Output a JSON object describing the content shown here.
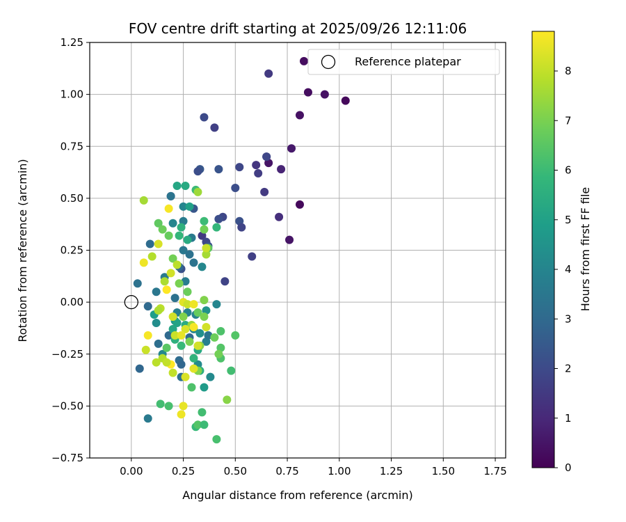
{
  "chart_data": {
    "type": "scatter",
    "title": "FOV centre drift starting at 2025/09/26 12:11:06",
    "xlabel": "Angular distance from reference (arcmin)",
    "ylabel": "Rotation from reference (arcmin)",
    "xlim": [
      -0.2,
      1.8
    ],
    "ylim": [
      -0.75,
      1.25
    ],
    "xticks": [
      0.0,
      0.25,
      0.5,
      0.75,
      1.0,
      1.25,
      1.5,
      1.75
    ],
    "xtick_labels": [
      "0.00",
      "0.25",
      "0.50",
      "0.75",
      "1.00",
      "1.25",
      "1.50",
      "1.75"
    ],
    "yticks": [
      -0.75,
      -0.5,
      -0.25,
      0.0,
      0.25,
      0.5,
      0.75,
      1.0,
      1.25
    ],
    "ytick_labels": [
      "−0.75",
      "−0.50",
      "−0.25",
      "0.00",
      "0.25",
      "0.50",
      "0.75",
      "1.00",
      "1.25"
    ],
    "grid": true,
    "legend": {
      "position": "top-right",
      "label": "Reference platepar"
    },
    "reference_point": {
      "x": 0.0,
      "y": 0.0
    },
    "colorbar": {
      "label": "Hours from first FF file",
      "range": [
        0,
        8.8
      ],
      "ticks": [
        0,
        1,
        2,
        3,
        4,
        5,
        6,
        7,
        8
      ],
      "tick_labels": [
        "0",
        "1",
        "2",
        "3",
        "4",
        "5",
        "6",
        "7",
        "8"
      ],
      "colormap": [
        "#440154",
        "#482878",
        "#3e4989",
        "#31688e",
        "#26828e",
        "#1f9e89",
        "#35b779",
        "#6ece58",
        "#b5de2b",
        "#fde725"
      ]
    },
    "points": [
      {
        "x": 0.83,
        "y": 1.16,
        "h": 0.3
      },
      {
        "x": 0.85,
        "y": 1.01,
        "h": 0.3
      },
      {
        "x": 0.93,
        "y": 1.0,
        "h": 0.4
      },
      {
        "x": 1.03,
        "y": 0.97,
        "h": 0.2
      },
      {
        "x": 0.81,
        "y": 0.9,
        "h": 0.4
      },
      {
        "x": 0.66,
        "y": 1.1,
        "h": 1.5
      },
      {
        "x": 0.77,
        "y": 0.74,
        "h": 0.6
      },
      {
        "x": 0.72,
        "y": 0.64,
        "h": 0.9
      },
      {
        "x": 0.66,
        "y": 0.67,
        "h": 0.5
      },
      {
        "x": 0.65,
        "y": 0.7,
        "h": 1.8
      },
      {
        "x": 0.65,
        "y": 0.7,
        "h": 1.9
      },
      {
        "x": 0.6,
        "y": 0.66,
        "h": 1.4
      },
      {
        "x": 0.61,
        "y": 0.62,
        "h": 1.6
      },
      {
        "x": 0.64,
        "y": 0.53,
        "h": 1.5
      },
      {
        "x": 0.52,
        "y": 0.65,
        "h": 1.9
      },
      {
        "x": 0.5,
        "y": 0.55,
        "h": 2.1
      },
      {
        "x": 0.71,
        "y": 0.41,
        "h": 1.2
      },
      {
        "x": 0.81,
        "y": 0.47,
        "h": 0.2
      },
      {
        "x": 0.76,
        "y": 0.3,
        "h": 0.5
      },
      {
        "x": 0.58,
        "y": 0.22,
        "h": 1.7
      },
      {
        "x": 0.52,
        "y": 0.39,
        "h": 2.2
      },
      {
        "x": 0.53,
        "y": 0.36,
        "h": 1.8
      },
      {
        "x": 0.35,
        "y": 0.89,
        "h": 2.0
      },
      {
        "x": 0.4,
        "y": 0.84,
        "h": 1.7
      },
      {
        "x": 0.42,
        "y": 0.64,
        "h": 2.3
      },
      {
        "x": 0.33,
        "y": 0.64,
        "h": 2.4
      },
      {
        "x": 0.32,
        "y": 0.63,
        "h": 2.1
      },
      {
        "x": 0.44,
        "y": 0.41,
        "h": 1.9
      },
      {
        "x": 0.42,
        "y": 0.4,
        "h": 2.1
      },
      {
        "x": 0.3,
        "y": 0.45,
        "h": 2.4
      },
      {
        "x": 0.34,
        "y": 0.32,
        "h": 1.5
      },
      {
        "x": 0.36,
        "y": 0.29,
        "h": 1.9
      },
      {
        "x": 0.37,
        "y": 0.27,
        "h": 2.2
      },
      {
        "x": 0.45,
        "y": 0.1,
        "h": 1.8
      },
      {
        "x": 0.19,
        "y": 0.51,
        "h": 2.0
      },
      {
        "x": 0.24,
        "y": 0.16,
        "h": 2.2
      },
      {
        "x": 0.03,
        "y": 0.09,
        "h": 3.3
      },
      {
        "x": 0.04,
        "y": -0.32,
        "h": 2.9
      },
      {
        "x": 0.08,
        "y": -0.56,
        "h": 3.6
      },
      {
        "x": 0.08,
        "y": -0.02,
        "h": 3.0
      },
      {
        "x": 0.09,
        "y": 0.28,
        "h": 3.1
      },
      {
        "x": 0.12,
        "y": 0.05,
        "h": 3.5
      },
      {
        "x": 0.12,
        "y": -0.1,
        "h": 4.3
      },
      {
        "x": 0.13,
        "y": -0.2,
        "h": 3.2
      },
      {
        "x": 0.15,
        "y": -0.25,
        "h": 4.1
      },
      {
        "x": 0.16,
        "y": 0.12,
        "h": 3.6
      },
      {
        "x": 0.18,
        "y": -0.16,
        "h": 3.0
      },
      {
        "x": 0.19,
        "y": 0.51,
        "h": 3.4
      },
      {
        "x": 0.2,
        "y": 0.38,
        "h": 4.0
      },
      {
        "x": 0.21,
        "y": 0.02,
        "h": 3.3
      },
      {
        "x": 0.22,
        "y": -0.05,
        "h": 3.8
      },
      {
        "x": 0.23,
        "y": 0.17,
        "h": 3.0
      },
      {
        "x": 0.23,
        "y": -0.28,
        "h": 3.1
      },
      {
        "x": 0.24,
        "y": -0.36,
        "h": 3.2
      },
      {
        "x": 0.24,
        "y": -0.3,
        "h": 2.9
      },
      {
        "x": 0.25,
        "y": 0.39,
        "h": 3.7
      },
      {
        "x": 0.25,
        "y": 0.46,
        "h": 4.0
      },
      {
        "x": 0.25,
        "y": 0.25,
        "h": 3.5
      },
      {
        "x": 0.26,
        "y": 0.1,
        "h": 3.7
      },
      {
        "x": 0.27,
        "y": -0.05,
        "h": 3.9
      },
      {
        "x": 0.28,
        "y": 0.23,
        "h": 3.3
      },
      {
        "x": 0.28,
        "y": -0.17,
        "h": 3.0
      },
      {
        "x": 0.29,
        "y": 0.31,
        "h": 3.6
      },
      {
        "x": 0.3,
        "y": 0.19,
        "h": 3.4
      },
      {
        "x": 0.3,
        "y": -0.13,
        "h": 4.0
      },
      {
        "x": 0.31,
        "y": -0.06,
        "h": 3.9
      },
      {
        "x": 0.32,
        "y": -0.3,
        "h": 4.2
      },
      {
        "x": 0.33,
        "y": -0.15,
        "h": 4.4
      },
      {
        "x": 0.34,
        "y": 0.17,
        "h": 4.1
      },
      {
        "x": 0.36,
        "y": -0.04,
        "h": 4.5
      },
      {
        "x": 0.36,
        "y": -0.19,
        "h": 3.8
      },
      {
        "x": 0.37,
        "y": -0.16,
        "h": 3.4
      },
      {
        "x": 0.38,
        "y": -0.36,
        "h": 4.2
      },
      {
        "x": 0.41,
        "y": -0.01,
        "h": 4.0
      },
      {
        "x": 0.35,
        "y": -0.41,
        "h": 4.8
      },
      {
        "x": 0.21,
        "y": -0.09,
        "h": 4.6
      },
      {
        "x": 0.11,
        "y": -0.06,
        "h": 4.9
      },
      {
        "x": 0.22,
        "y": 0.56,
        "h": 5.2
      },
      {
        "x": 0.26,
        "y": 0.56,
        "h": 5.3
      },
      {
        "x": 0.28,
        "y": 0.46,
        "h": 5.0
      },
      {
        "x": 0.24,
        "y": 0.36,
        "h": 5.6
      },
      {
        "x": 0.27,
        "y": 0.3,
        "h": 5.4
      },
      {
        "x": 0.23,
        "y": 0.32,
        "h": 5.8
      },
      {
        "x": 0.22,
        "y": -0.1,
        "h": 5.1
      },
      {
        "x": 0.2,
        "y": -0.13,
        "h": 5.2
      },
      {
        "x": 0.21,
        "y": -0.18,
        "h": 5.6
      },
      {
        "x": 0.24,
        "y": -0.21,
        "h": 5.9
      },
      {
        "x": 0.26,
        "y": -0.11,
        "h": 5.4
      },
      {
        "x": 0.3,
        "y": -0.27,
        "h": 5.7
      },
      {
        "x": 0.32,
        "y": -0.23,
        "h": 5.3
      },
      {
        "x": 0.33,
        "y": -0.33,
        "h": 5.5
      },
      {
        "x": 0.41,
        "y": 0.36,
        "h": 5.8
      },
      {
        "x": 0.35,
        "y": 0.39,
        "h": 6.0
      },
      {
        "x": 0.31,
        "y": 0.54,
        "h": 6.0
      },
      {
        "x": 0.14,
        "y": -0.49,
        "h": 6.1
      },
      {
        "x": 0.18,
        "y": -0.5,
        "h": 6.2
      },
      {
        "x": 0.29,
        "y": -0.41,
        "h": 6.3
      },
      {
        "x": 0.31,
        "y": -0.6,
        "h": 5.9
      },
      {
        "x": 0.32,
        "y": -0.59,
        "h": 6.4
      },
      {
        "x": 0.34,
        "y": -0.53,
        "h": 6.1
      },
      {
        "x": 0.35,
        "y": -0.59,
        "h": 6.0
      },
      {
        "x": 0.41,
        "y": -0.66,
        "h": 6.2
      },
      {
        "x": 0.43,
        "y": -0.27,
        "h": 6.3
      },
      {
        "x": 0.43,
        "y": -0.22,
        "h": 6.4
      },
      {
        "x": 0.43,
        "y": -0.14,
        "h": 6.3
      },
      {
        "x": 0.48,
        "y": -0.33,
        "h": 6.1
      },
      {
        "x": 0.5,
        "y": -0.16,
        "h": 6.4
      },
      {
        "x": 0.17,
        "y": -0.22,
        "h": 6.5
      },
      {
        "x": 0.13,
        "y": 0.38,
        "h": 6.6
      },
      {
        "x": 0.15,
        "y": 0.35,
        "h": 6.8
      },
      {
        "x": 0.18,
        "y": 0.32,
        "h": 6.7
      },
      {
        "x": 0.2,
        "y": 0.21,
        "h": 6.9
      },
      {
        "x": 0.23,
        "y": 0.09,
        "h": 7.0
      },
      {
        "x": 0.27,
        "y": 0.05,
        "h": 6.8
      },
      {
        "x": 0.32,
        "y": -0.05,
        "h": 6.7
      },
      {
        "x": 0.35,
        "y": -0.07,
        "h": 7.0
      },
      {
        "x": 0.35,
        "y": 0.35,
        "h": 6.9
      },
      {
        "x": 0.37,
        "y": 0.26,
        "h": 6.6
      },
      {
        "x": 0.35,
        "y": 0.01,
        "h": 7.1
      },
      {
        "x": 0.4,
        "y": -0.17,
        "h": 6.8
      },
      {
        "x": 0.42,
        "y": -0.25,
        "h": 6.9
      },
      {
        "x": 0.46,
        "y": -0.47,
        "h": 7.2
      },
      {
        "x": 0.32,
        "y": -0.33,
        "h": 7.1
      },
      {
        "x": 0.33,
        "y": -0.21,
        "h": 7.3
      },
      {
        "x": 0.28,
        "y": -0.19,
        "h": 7.0
      },
      {
        "x": 0.25,
        "y": -0.07,
        "h": 7.1
      },
      {
        "x": 0.29,
        "y": -0.11,
        "h": 7.4
      },
      {
        "x": 0.36,
        "y": 0.23,
        "h": 7.6
      },
      {
        "x": 0.32,
        "y": 0.53,
        "h": 7.5
      },
      {
        "x": 0.06,
        "y": 0.49,
        "h": 7.6
      },
      {
        "x": 0.16,
        "y": 0.1,
        "h": 7.7
      },
      {
        "x": 0.14,
        "y": -0.03,
        "h": 7.9
      },
      {
        "x": 0.15,
        "y": -0.27,
        "h": 7.8
      },
      {
        "x": 0.12,
        "y": -0.29,
        "h": 7.9
      },
      {
        "x": 0.2,
        "y": -0.34,
        "h": 8.0
      },
      {
        "x": 0.21,
        "y": -0.16,
        "h": 8.1
      },
      {
        "x": 0.19,
        "y": 0.14,
        "h": 8.2
      },
      {
        "x": 0.13,
        "y": 0.28,
        "h": 8.3
      },
      {
        "x": 0.1,
        "y": 0.22,
        "h": 7.8
      },
      {
        "x": 0.06,
        "y": 0.19,
        "h": 8.6
      },
      {
        "x": 0.18,
        "y": 0.45,
        "h": 8.7
      },
      {
        "x": 0.17,
        "y": 0.06,
        "h": 8.8
      },
      {
        "x": 0.2,
        "y": -0.07,
        "h": 8.2
      },
      {
        "x": 0.25,
        "y": 0.0,
        "h": 8.4
      },
      {
        "x": 0.27,
        "y": -0.01,
        "h": 8.1
      },
      {
        "x": 0.3,
        "y": -0.01,
        "h": 8.6
      },
      {
        "x": 0.26,
        "y": -0.13,
        "h": 8.3
      },
      {
        "x": 0.24,
        "y": -0.16,
        "h": 8.5
      },
      {
        "x": 0.3,
        "y": -0.12,
        "h": 8.7
      },
      {
        "x": 0.32,
        "y": -0.21,
        "h": 8.2
      },
      {
        "x": 0.3,
        "y": -0.32,
        "h": 8.4
      },
      {
        "x": 0.26,
        "y": -0.36,
        "h": 8.3
      },
      {
        "x": 0.25,
        "y": -0.5,
        "h": 8.5
      },
      {
        "x": 0.24,
        "y": -0.54,
        "h": 8.6
      },
      {
        "x": 0.08,
        "y": -0.16,
        "h": 8.7
      },
      {
        "x": 0.07,
        "y": -0.23,
        "h": 8.1
      },
      {
        "x": 0.19,
        "y": -0.3,
        "h": 8.8
      },
      {
        "x": 0.17,
        "y": -0.29,
        "h": 8.0
      },
      {
        "x": 0.36,
        "y": -0.12,
        "h": 8.2
      },
      {
        "x": 0.13,
        "y": -0.04,
        "h": 7.7
      },
      {
        "x": 0.36,
        "y": 0.26,
        "h": 8.1
      },
      {
        "x": 0.22,
        "y": 0.18,
        "h": 7.9
      }
    ]
  }
}
